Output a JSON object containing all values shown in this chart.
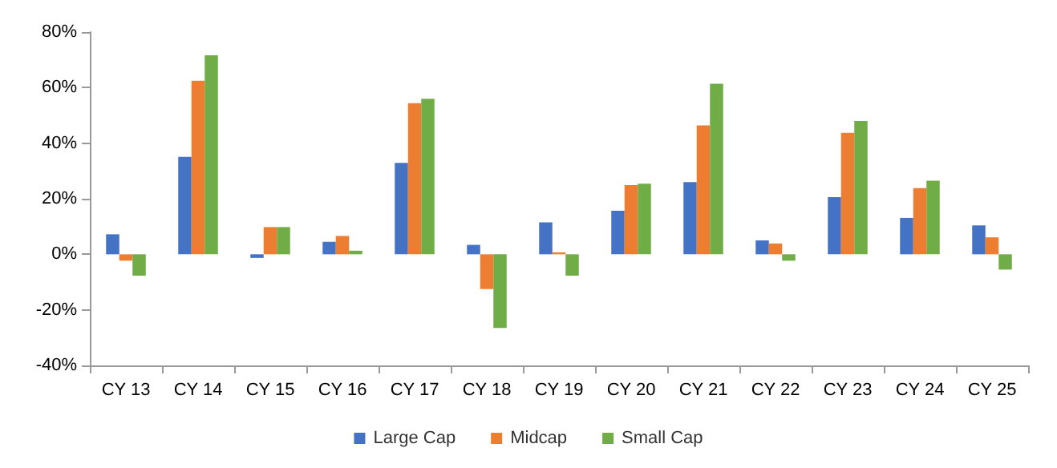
{
  "chart_data": {
    "type": "bar",
    "categories": [
      "CY 13",
      "CY 14",
      "CY 15",
      "CY 16",
      "CY 17",
      "CY 18",
      "CY 19",
      "CY 20",
      "CY 21",
      "CY 22",
      "CY 23",
      "CY 24",
      "CY 25"
    ],
    "series": [
      {
        "name": "Large Cap",
        "color": "#4472c4",
        "values": [
          7.2,
          35.1,
          -1.3,
          4.5,
          32.9,
          3.4,
          11.5,
          15.7,
          26.0,
          5.0,
          20.6,
          13.1,
          10.4
        ]
      },
      {
        "name": "Midcap",
        "color": "#ed7d31",
        "values": [
          -2.3,
          62.5,
          9.8,
          6.6,
          54.4,
          -12.5,
          0.7,
          24.9,
          46.4,
          3.9,
          43.7,
          23.8,
          6.1
        ]
      },
      {
        "name": "Small Cap",
        "color": "#70ad47",
        "values": [
          -7.7,
          71.6,
          9.8,
          1.3,
          56.0,
          -26.5,
          -7.7,
          25.4,
          61.4,
          -2.3,
          48.0,
          26.5,
          -5.5
        ]
      }
    ],
    "ylim": [
      -40,
      80
    ],
    "yticks": [
      {
        "value": -40,
        "label": "-40%"
      },
      {
        "value": -20,
        "label": "-20%"
      },
      {
        "value": 0,
        "label": "0%"
      },
      {
        "value": 20,
        "label": "20%"
      },
      {
        "value": 40,
        "label": "40%"
      },
      {
        "value": 60,
        "label": "60%"
      },
      {
        "value": 80,
        "label": "80%"
      }
    ],
    "grid": false,
    "legend": "bottom"
  }
}
